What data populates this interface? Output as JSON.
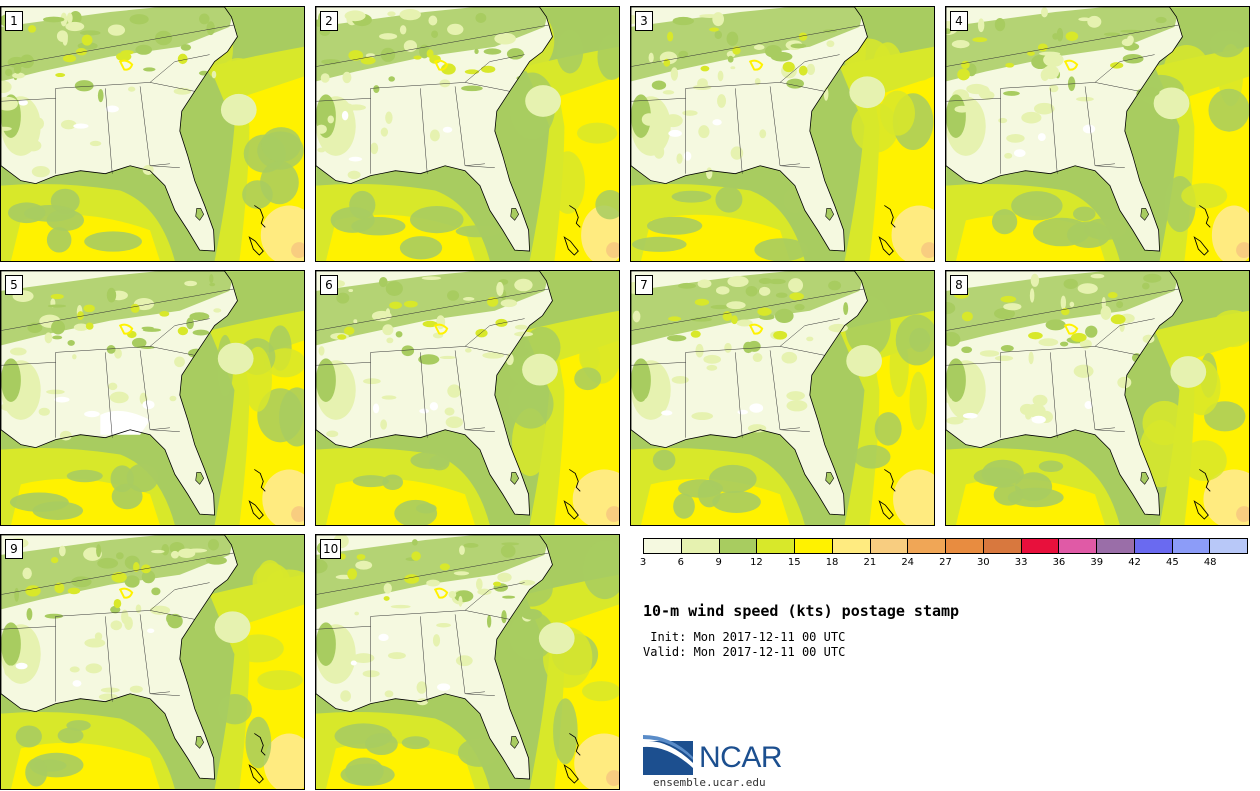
{
  "panels": [
    {
      "label": "1"
    },
    {
      "label": "2"
    },
    {
      "label": "3"
    },
    {
      "label": "4"
    },
    {
      "label": "5"
    },
    {
      "label": "6"
    },
    {
      "label": "7"
    },
    {
      "label": "8"
    },
    {
      "label": "9"
    },
    {
      "label": "10"
    }
  ],
  "legend": {
    "ticks": [
      "3",
      "6",
      "9",
      "12",
      "15",
      "18",
      "21",
      "24",
      "27",
      "30",
      "33",
      "36",
      "39",
      "42",
      "45",
      "48"
    ],
    "colors": [
      "#f5f9e0",
      "#e6f2b0",
      "#a8cc60",
      "#d8e82a",
      "#fff200",
      "#ffeb80",
      "#f8cd80",
      "#f0a656",
      "#e88c40",
      "#d8783e",
      "#e8103c",
      "#e05aa6",
      "#9a6ea8",
      "#6a6af0",
      "#8c9cf8",
      "#b8c8f8"
    ]
  },
  "text": {
    "title": "10-m wind speed (kts) postage stamp",
    "init": " Init: Mon 2017-12-11 00 UTC",
    "valid": "Valid: Mon 2017-12-11 00 UTC",
    "logo": "NCAR",
    "url": "ensemble.ucar.edu"
  },
  "map_colors": {
    "lt": "#f5f9e0",
    "l1": "#e6f2b0",
    "l2": "#a8cc60",
    "l3": "#d8e82a",
    "l4": "#fff200",
    "l5": "#ffeb80",
    "l6": "#f8cd80",
    "white": "#ffffff"
  }
}
